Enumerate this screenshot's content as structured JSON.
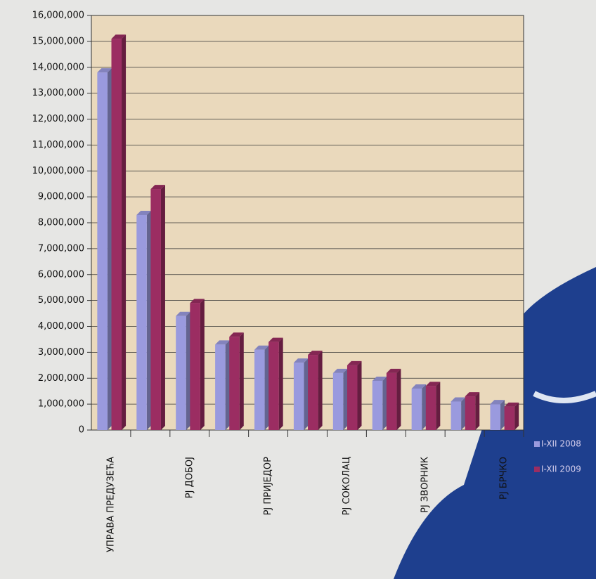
{
  "chart_data": {
    "type": "bar",
    "categories": [
      "УПРАВА  ПРЕДУЗЕЋА",
      null,
      "PJ  ДОБОЈ",
      null,
      "PJ  ПРИЈЕДОР",
      null,
      "PJ  СОКОЛАЦ",
      null,
      "PJ  ЗВОРНИК",
      null,
      "PJ  БРЧКО"
    ],
    "series": [
      {
        "name": "I-XII 2008",
        "color": "#9a9ade",
        "values": [
          13800000,
          8300000,
          4400000,
          3300000,
          3100000,
          2600000,
          2200000,
          1900000,
          1600000,
          1100000,
          1000000
        ]
      },
      {
        "name": "I-XII 2009",
        "color": "#9b2d62",
        "values": [
          15100000,
          9300000,
          4900000,
          3600000,
          3400000,
          2900000,
          2500000,
          2200000,
          1700000,
          1300000,
          900000
        ]
      }
    ],
    "ylim": [
      0,
      16000000
    ],
    "yticks": [
      0,
      {
        "value": 1000000,
        "label": "1,000,000"
      },
      {
        "value": 2000000,
        "label": "2,000,000"
      },
      {
        "value": 3000000,
        "label": "3,000,000"
      },
      {
        "value": 4000000,
        "label": "4,000,000"
      },
      {
        "value": 5000000,
        "label": "5,000,000"
      },
      {
        "value": 6000000,
        "label": "6,000,000"
      },
      {
        "value": 7000000,
        "label": "7,000,000"
      },
      {
        "value": 8000000,
        "label": "8,000,000"
      },
      {
        "value": 9000000,
        "label": "9,000,000"
      },
      {
        "value": 10000000,
        "label": "10,000,000"
      },
      {
        "value": 11000000,
        "label": "11,000,000"
      },
      {
        "value": 12000000,
        "label": "12,000,000"
      },
      {
        "value": 13000000,
        "label": "13,000,000"
      },
      {
        "value": 14000000,
        "label": "14,000,000"
      },
      {
        "value": 15000000,
        "label": "15,000,000"
      },
      {
        "value": 16000000,
        "label": "16,000,000"
      }
    ],
    "grid": true,
    "legend": "right"
  }
}
